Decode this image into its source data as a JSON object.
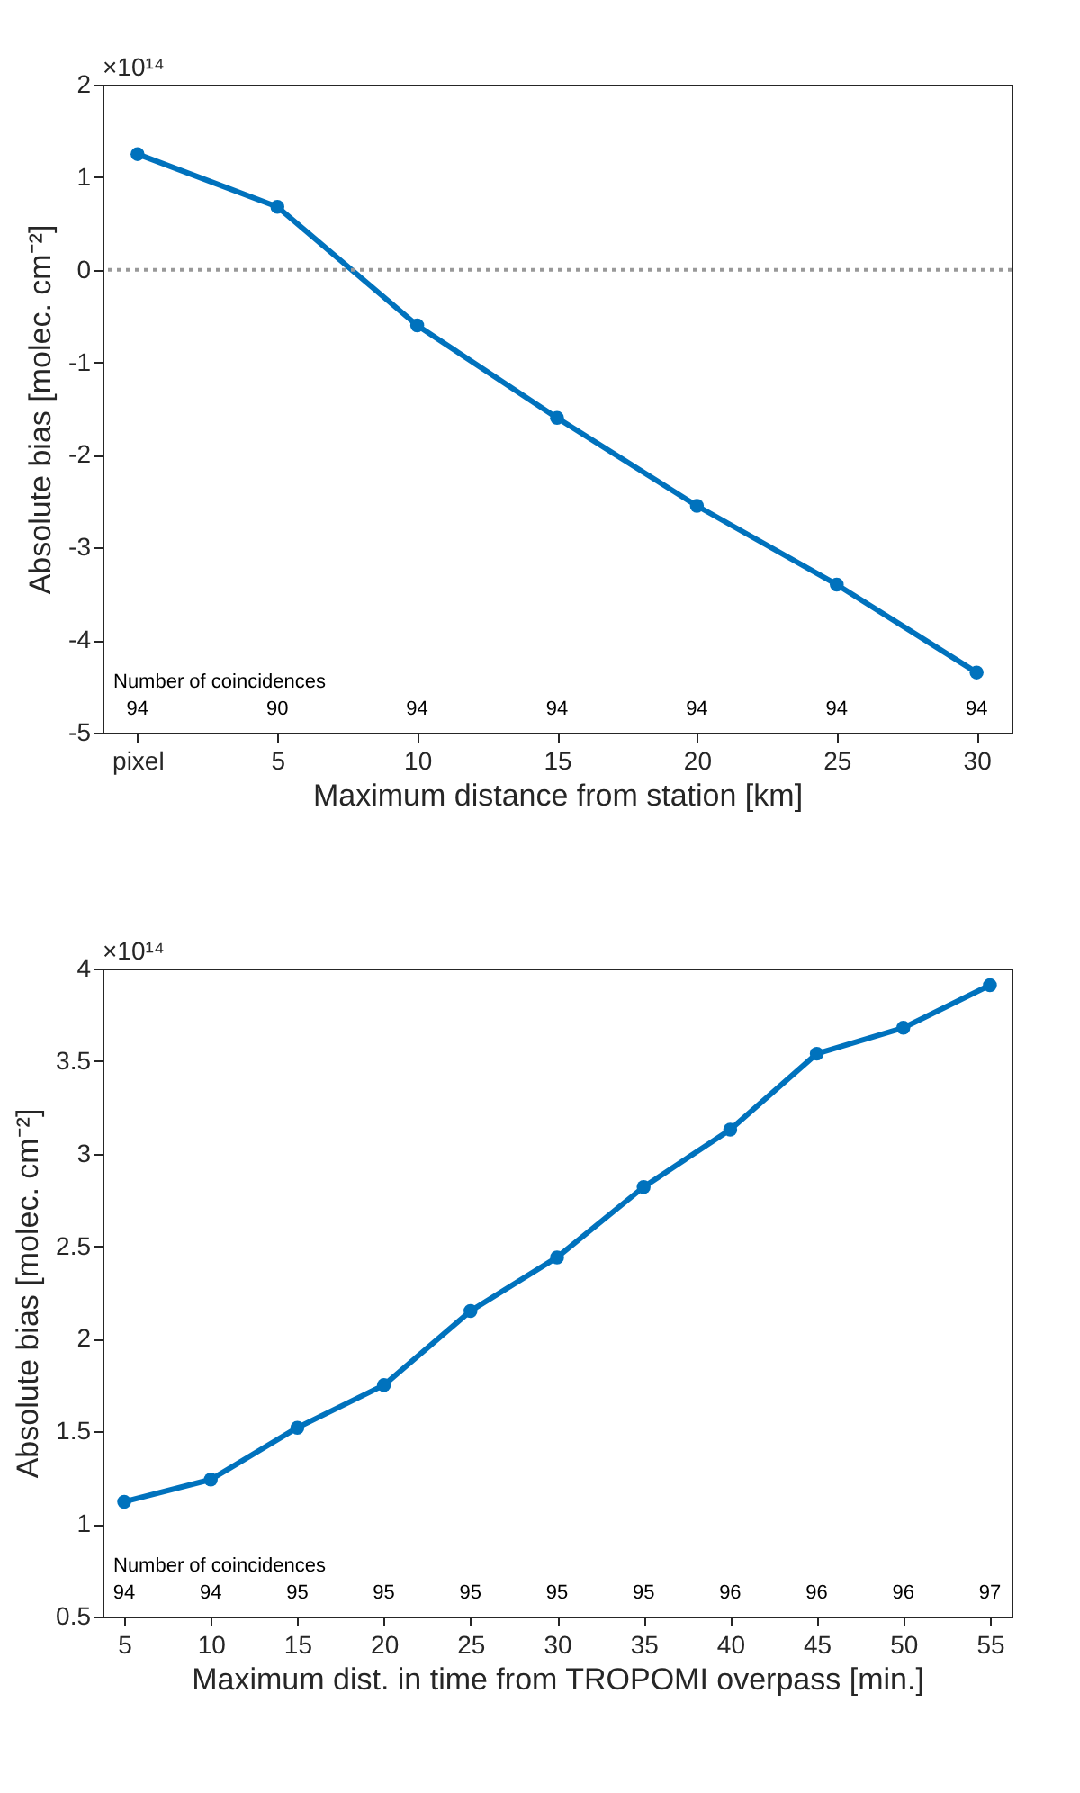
{
  "chart_data": [
    {
      "type": "line",
      "xlabel": "Maximum distance from station [km]",
      "ylabel": "Absolute bias [molec. cm⁻²]",
      "categories": [
        "pixel",
        "5",
        "10",
        "15",
        "20",
        "25",
        "30"
      ],
      "series": [
        {
          "color": "#0072bd",
          "values": [
            1.25,
            0.68,
            -0.6,
            -1.6,
            -2.55,
            -3.4,
            -4.35
          ]
        }
      ],
      "ylim": [
        -5,
        2
      ],
      "yticks": [
        -5,
        -4,
        -3,
        -2,
        -1,
        0,
        1,
        2
      ],
      "marker": "circle",
      "line_style": "solid",
      "ref_lines": [
        {
          "axis": "y",
          "value": 0,
          "color": "#999999",
          "line_style": "dotted"
        }
      ],
      "annotations": [
        "×10¹⁴",
        "Number of coincidences",
        "94",
        "90",
        "94",
        "94",
        "94",
        "94",
        "94"
      ]
    },
    {
      "type": "line",
      "xlabel": "Maximum dist. in time from TROPOMI overpass [min.]",
      "ylabel": "Absolute bias [molec. cm⁻²]",
      "categories": [
        "5",
        "10",
        "15",
        "20",
        "25",
        "30",
        "35",
        "40",
        "45",
        "50",
        "55"
      ],
      "series": [
        {
          "color": "#0072bd",
          "values": [
            1.12,
            1.24,
            1.52,
            1.75,
            2.15,
            2.44,
            2.82,
            3.13,
            3.54,
            3.68,
            3.91
          ]
        }
      ],
      "ylim": [
        0.5,
        4
      ],
      "yticks": [
        0.5,
        1,
        1.5,
        2,
        2.5,
        3,
        3.5,
        4
      ],
      "marker": "circle",
      "line_style": "solid",
      "annotations": [
        "×10¹⁴",
        "Number of coincidences",
        "94",
        "94",
        "95",
        "95",
        "95",
        "95",
        "95",
        "96",
        "96",
        "96",
        "97"
      ]
    }
  ]
}
